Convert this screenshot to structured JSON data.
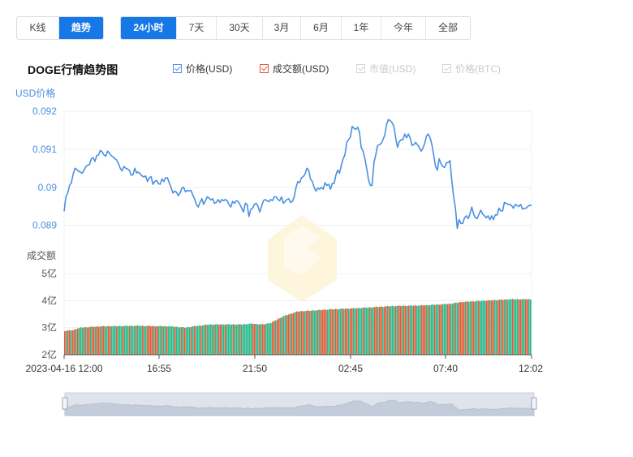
{
  "period_toggle": [
    "K线",
    "趋势"
  ],
  "period_toggle_active": 1,
  "range_tabs": [
    "24小时",
    "7天",
    "30天",
    "3月",
    "6月",
    "1年",
    "今年",
    "全部"
  ],
  "range_tabs_active": 0,
  "chart_title": "DOGE行情趋势图",
  "legend": [
    {
      "label": "价格(USD)",
      "checked": true,
      "enabled": true,
      "color": "#4a90e2"
    },
    {
      "label": "成交额(USD)",
      "checked": true,
      "enabled": true,
      "color": "#e25c3b"
    },
    {
      "label": "市值(USD)",
      "checked": true,
      "enabled": false,
      "color": "#cccccc"
    },
    {
      "label": "价格(BTC)",
      "checked": true,
      "enabled": false,
      "color": "#cccccc"
    }
  ],
  "chart_data": [
    {
      "type": "line",
      "name": "price",
      "ylabel": "USD价格",
      "ylim": [
        0.0888,
        0.092
      ],
      "yticks": [
        "0.092",
        "0.091",
        "0.09",
        "0.089"
      ],
      "ytick_values": [
        0.092,
        0.091,
        0.09,
        0.089
      ],
      "xticks": [
        "2023-04-16 12:00",
        "16:55",
        "21:50",
        "02:45",
        "07:40",
        "12:02"
      ],
      "line_color": "#4a90e2",
      "grid": true,
      "values": [
        0.08937,
        0.08975,
        0.08985,
        0.09005,
        0.09012,
        0.09035,
        0.0905,
        0.09047,
        0.09042,
        0.0904,
        0.09037,
        0.09045,
        0.09055,
        0.09058,
        0.0906,
        0.09075,
        0.09078,
        0.09068,
        0.09083,
        0.09085,
        0.09097,
        0.09093,
        0.09085,
        0.09082,
        0.09095,
        0.0909,
        0.09083,
        0.0908,
        0.09075,
        0.09072,
        0.09062,
        0.0905,
        0.09043,
        0.09055,
        0.0905,
        0.09048,
        0.09045,
        0.09032,
        0.09033,
        0.0905,
        0.09038,
        0.0904,
        0.09035,
        0.0903,
        0.09027,
        0.0903,
        0.09015,
        0.09025,
        0.09028,
        0.09008,
        0.09015,
        0.09018,
        0.0901,
        0.09008,
        0.09022,
        0.09015,
        0.09025,
        0.09025,
        0.09012,
        0.09,
        0.08985,
        0.0899,
        0.08987,
        0.08978,
        0.08985,
        0.08998,
        0.09,
        0.08988,
        0.08992,
        0.0899,
        0.08992,
        0.0898,
        0.0897,
        0.08955,
        0.08948,
        0.0896,
        0.0897,
        0.08955,
        0.08965,
        0.08975,
        0.08972,
        0.08967,
        0.0897,
        0.08958,
        0.0896,
        0.08968,
        0.0896,
        0.08968,
        0.08965,
        0.08968,
        0.08965,
        0.08955,
        0.08948,
        0.08963,
        0.08958,
        0.08965,
        0.08963,
        0.08955,
        0.08945,
        0.08935,
        0.08958,
        0.08955,
        0.08923,
        0.08942,
        0.08945,
        0.08955,
        0.08958,
        0.0895,
        0.08935,
        0.0895,
        0.08965,
        0.08968,
        0.08965,
        0.08962,
        0.08968,
        0.08965,
        0.08975,
        0.08975,
        0.08968,
        0.08965,
        0.08975,
        0.08958,
        0.08963,
        0.08968,
        0.0897,
        0.0896,
        0.08963,
        0.08975,
        0.09,
        0.09015,
        0.09012,
        0.09025,
        0.09028,
        0.09035,
        0.0905,
        0.09045,
        0.09022,
        0.09015,
        0.09,
        0.0899,
        0.08998,
        0.08995,
        0.09,
        0.08995,
        0.09012,
        0.09005,
        0.09008,
        0.08995,
        0.0901,
        0.0901,
        0.09032,
        0.09045,
        0.09037,
        0.09058,
        0.09075,
        0.09085,
        0.09118,
        0.09125,
        0.09132,
        0.0916,
        0.09155,
        0.09152,
        0.09158,
        0.09145,
        0.09105,
        0.09095,
        0.09075,
        0.0905,
        0.0902,
        0.09005,
        0.09005,
        0.09065,
        0.09085,
        0.0911,
        0.09112,
        0.09115,
        0.09125,
        0.09138,
        0.09165,
        0.09178,
        0.09175,
        0.0917,
        0.0916,
        0.0913,
        0.09105,
        0.0912,
        0.09125,
        0.09125,
        0.0914,
        0.0913,
        0.0914,
        0.0913,
        0.0911,
        0.09112,
        0.09118,
        0.09112,
        0.09105,
        0.09095,
        0.09102,
        0.09115,
        0.09135,
        0.0914,
        0.0913,
        0.09112,
        0.09085,
        0.09055,
        0.09045,
        0.09075,
        0.09062,
        0.09055,
        0.09052,
        0.09065,
        0.09065,
        0.0907,
        0.09015,
        0.08975,
        0.08945,
        0.08892,
        0.08915,
        0.08905,
        0.08905,
        0.0892,
        0.08925,
        0.08918,
        0.0893,
        0.08948,
        0.0893,
        0.0892,
        0.08918,
        0.0893,
        0.0894,
        0.0893,
        0.08925,
        0.0892,
        0.08925,
        0.08915,
        0.08925,
        0.08915,
        0.08928,
        0.08927,
        0.08945,
        0.08938,
        0.08938,
        0.0896,
        0.08958,
        0.08955,
        0.08955,
        0.08952,
        0.08945,
        0.08955,
        0.08952,
        0.0895,
        0.08955,
        0.08943,
        0.08945,
        0.08945,
        0.0895,
        0.08953,
        0.08952
      ]
    },
    {
      "type": "bar",
      "name": "volume",
      "ylabel": "成交额",
      "ylim": [
        2,
        5
      ],
      "yticks": [
        "5亿",
        "4亿",
        "3亿",
        "2亿"
      ],
      "ytick_values": [
        5,
        4,
        3,
        2
      ],
      "up_color": "#e25c3b",
      "down_color": "#2bb989",
      "grid": true,
      "count": 288,
      "base_profile": [
        [
          0,
          2.88
        ],
        [
          12,
          2.91
        ],
        [
          14,
          2.95
        ],
        [
          20,
          3.0
        ],
        [
          45,
          3.05
        ],
        [
          90,
          3.07
        ],
        [
          130,
          3.05
        ],
        [
          150,
          3.0
        ],
        [
          160,
          3.05
        ],
        [
          180,
          3.12
        ],
        [
          220,
          3.12
        ],
        [
          230,
          3.15
        ],
        [
          245,
          3.12
        ],
        [
          255,
          3.18
        ],
        [
          270,
          3.42
        ],
        [
          288,
          3.6
        ],
        [
          330,
          3.68
        ],
        [
          360,
          3.72
        ],
        [
          405,
          3.8
        ],
        [
          440,
          3.82
        ],
        [
          475,
          3.88
        ],
        [
          490,
          3.95
        ],
        [
          520,
          4.0
        ],
        [
          550,
          4.05
        ],
        [
          576,
          4.05
        ]
      ]
    }
  ],
  "watermark_color": "#fdf1c9",
  "navigator_color": "#c3ccda"
}
